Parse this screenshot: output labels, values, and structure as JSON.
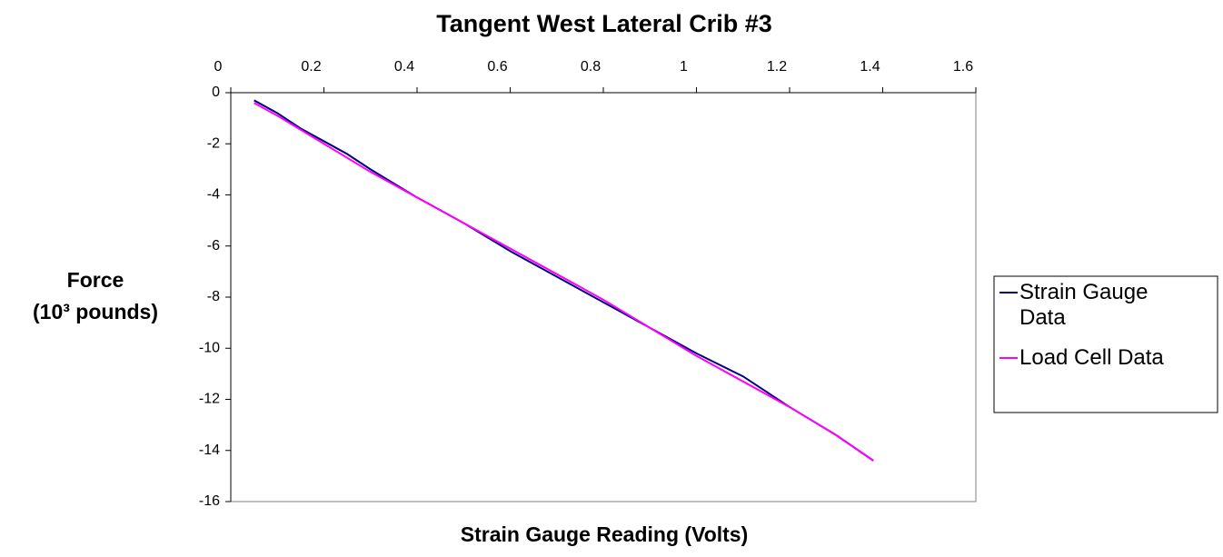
{
  "chart_data": {
    "type": "line",
    "title": "Tangent West Lateral Crib #3",
    "xlabel": "Strain Gauge Reading (Volts)",
    "ylabel": [
      "Force",
      "(10³ pounds)"
    ],
    "xlim": [
      0,
      1.6
    ],
    "xticks": [
      0,
      0.2,
      0.4,
      0.6,
      0.8,
      1,
      1.2,
      1.4,
      1.6
    ],
    "ylim": [
      -16,
      0
    ],
    "yticks": [
      0,
      -2,
      -4,
      -6,
      -8,
      -10,
      -12,
      -14,
      -16
    ],
    "series": [
      {
        "name": "Strain Gauge Data",
        "color": "#000080",
        "x": [
          0.05,
          0.1,
          0.15,
          0.2,
          0.25,
          0.3,
          0.4,
          0.5,
          0.6,
          0.7,
          0.8,
          0.9,
          1.0,
          1.1,
          1.2,
          1.3,
          1.38
        ],
        "values": [
          -0.3,
          -0.8,
          -1.4,
          -1.9,
          -2.4,
          -3.0,
          -4.1,
          -5.1,
          -6.2,
          -7.2,
          -8.2,
          -9.2,
          -10.2,
          -11.1,
          -12.3,
          -13.4,
          -14.4
        ]
      },
      {
        "name": "Load Cell Data",
        "color": "#ff00ff",
        "x": [
          0.05,
          0.1,
          0.2,
          0.3,
          0.4,
          0.5,
          0.6,
          0.7,
          0.8,
          0.9,
          1.0,
          1.1,
          1.2,
          1.3,
          1.38
        ],
        "values": [
          -0.4,
          -0.9,
          -2.0,
          -3.1,
          -4.1,
          -5.1,
          -6.1,
          -7.1,
          -8.1,
          -9.2,
          -10.3,
          -11.3,
          -12.3,
          -13.4,
          -14.4
        ]
      }
    ]
  }
}
